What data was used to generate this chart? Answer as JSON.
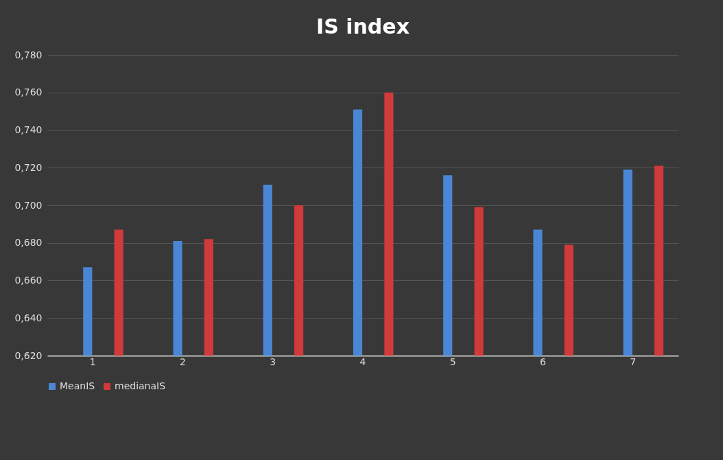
{
  "chart_data": {
    "type": "bar",
    "title": "IS index",
    "categories": [
      "1",
      "2",
      "3",
      "4",
      "5",
      "6",
      "7"
    ],
    "series": [
      {
        "name": "MeanIS",
        "color": "#4a86d4",
        "values": [
          0.667,
          0.681,
          0.711,
          0.751,
          0.716,
          0.687,
          0.719
        ]
      },
      {
        "name": "medianaIS",
        "color": "#d03a3a",
        "values": [
          0.687,
          0.682,
          0.7,
          0.76,
          0.699,
          0.679,
          0.721
        ]
      }
    ],
    "ylim": [
      0.62,
      0.78
    ],
    "yticks": [
      {
        "value": 0.62,
        "label": "0,620"
      },
      {
        "value": 0.64,
        "label": "0,640"
      },
      {
        "value": 0.66,
        "label": "0,660"
      },
      {
        "value": 0.68,
        "label": "0,680"
      },
      {
        "value": 0.7,
        "label": "0,700"
      },
      {
        "value": 0.72,
        "label": "0,720"
      },
      {
        "value": 0.74,
        "label": "0,740"
      },
      {
        "value": 0.76,
        "label": "0,760"
      },
      {
        "value": 0.78,
        "label": "0,780"
      }
    ],
    "grid": "y",
    "legend": "bottom"
  }
}
